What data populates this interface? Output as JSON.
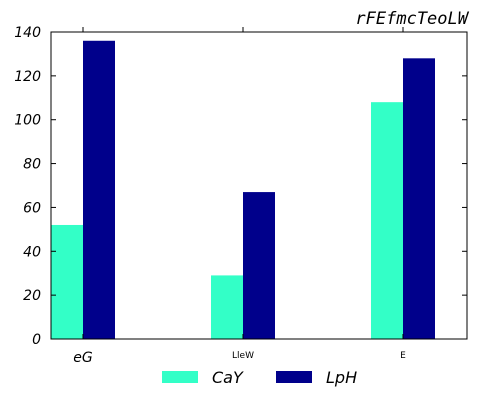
{
  "chart_data": {
    "type": "bar",
    "title": "rFEfmcTeoLW",
    "xlabel": "",
    "ylabel": "",
    "categories": [
      "eG",
      "LleW",
      "E"
    ],
    "series": [
      {
        "name": "CaY",
        "color": "#33ffc7",
        "values": [
          52,
          29,
          108
        ]
      },
      {
        "name": "LpH",
        "color": "#00008b",
        "values": [
          136,
          67,
          128
        ]
      }
    ],
    "ylim": [
      0,
      140
    ],
    "yticks": [
      0,
      20,
      40,
      60,
      80,
      100,
      120,
      140
    ],
    "grid": false,
    "legend_position": "bottom-center"
  }
}
